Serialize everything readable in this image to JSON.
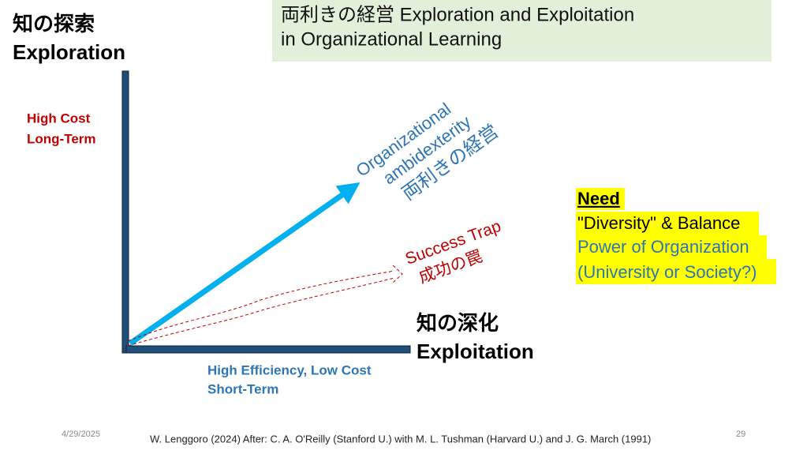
{
  "title": {
    "lines": [
      "両利きの経営 Exploration and Exploitation",
      "in Organizational Learning"
    ]
  },
  "y_axis": {
    "label_jp": "知の探索",
    "label_en": "Exploration",
    "note": [
      "High Cost",
      "Long-Term"
    ]
  },
  "x_axis": {
    "label_jp": "知の深化",
    "label_en": "Exploitation",
    "note": [
      "High Efficiency, Low Cost",
      "Short-Term"
    ]
  },
  "ambidexterity_arrow": {
    "lines": [
      "Organizational",
      "ambidexterity",
      "両利きの経営"
    ]
  },
  "trap_arrow": {
    "lines": [
      "Success Trap",
      "成功の罠"
    ]
  },
  "callout": {
    "heading": "Need",
    "lines": [
      "\"Diversity\" & Balance",
      "Power of Organization",
      "(University or Society?)"
    ]
  },
  "footer": {
    "date": "4/29/2025",
    "citation": "W. Lenggoro (2024) After: C. A. O'Reilly (Stanford U.) with M. L. Tushman (Harvard U.) and J. G. March (1991)",
    "page": "29"
  }
}
